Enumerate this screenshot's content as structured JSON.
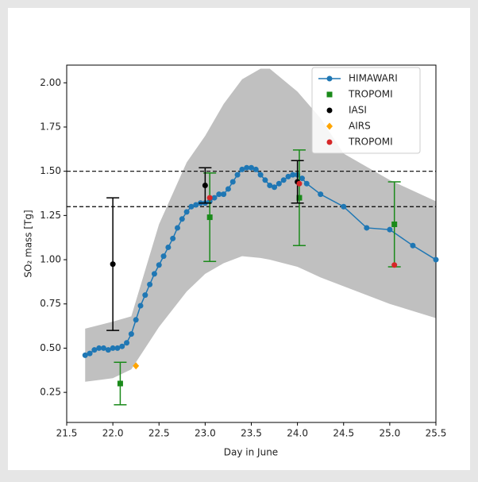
{
  "chart_data": {
    "type": "line",
    "xlabel": "Day in June",
    "ylabel": "SO₂ mass [Tg]",
    "xlim": [
      21.5,
      25.5
    ],
    "ylim": [
      0.08,
      2.1
    ],
    "xticks": [
      21.5,
      {
        "value": 22,
        "label": "22.0"
      },
      22.5,
      {
        "value": 23,
        "label": "23.0"
      },
      23.5,
      {
        "value": 24,
        "label": "24.0"
      },
      24.5,
      {
        "value": 25,
        "label": "25.0"
      },
      25.5
    ],
    "yticks": [
      {
        "value": 0.25,
        "label": "0.25"
      },
      {
        "value": 0.5,
        "label": "0.50"
      },
      {
        "value": 0.75,
        "label": "0.75"
      },
      {
        "value": 1,
        "label": "1.00"
      },
      {
        "value": 1.25,
        "label": "1.25"
      },
      {
        "value": 1.5,
        "label": "1.50"
      },
      {
        "value": 1.75,
        "label": "1.75"
      },
      {
        "value": 2,
        "label": "2.00"
      }
    ],
    "hlines": [
      1.5,
      1.3
    ],
    "legend": "upper right",
    "band": {
      "color": "#c0c0c0",
      "x": [
        21.7,
        22.0,
        22.2,
        22.5,
        22.8,
        23.0,
        23.2,
        23.4,
        23.6,
        23.7,
        24.0,
        24.25,
        24.5,
        25.0,
        25.5
      ],
      "upper": [
        0.61,
        0.65,
        0.68,
        1.2,
        1.55,
        1.7,
        1.88,
        2.02,
        2.08,
        2.08,
        1.95,
        1.8,
        1.6,
        1.45,
        1.33
      ],
      "lower": [
        0.31,
        0.33,
        0.38,
        0.62,
        0.82,
        0.92,
        0.98,
        1.02,
        1.01,
        1.0,
        0.96,
        0.9,
        0.85,
        0.75,
        0.67
      ]
    },
    "series": [
      {
        "name": "HIMAWARI",
        "color": "#1f77b4",
        "marker": "o",
        "line": true,
        "x": [
          21.7,
          21.75,
          21.8,
          21.85,
          21.9,
          21.95,
          22.0,
          22.05,
          22.1,
          22.15,
          22.2,
          22.25,
          22.3,
          22.35,
          22.4,
          22.45,
          22.5,
          22.55,
          22.6,
          22.65,
          22.7,
          22.75,
          22.8,
          22.85,
          22.9,
          22.95,
          23.0,
          23.05,
          23.1,
          23.15,
          23.2,
          23.25,
          23.3,
          23.35,
          23.4,
          23.45,
          23.5,
          23.55,
          23.6,
          23.65,
          23.7,
          23.75,
          23.8,
          23.85,
          23.9,
          23.95,
          24.0,
          24.05,
          24.1,
          24.25,
          24.5,
          24.75,
          25.0,
          25.25,
          25.5
        ],
        "values": [
          0.46,
          0.47,
          0.49,
          0.5,
          0.5,
          0.49,
          0.5,
          0.5,
          0.51,
          0.53,
          0.58,
          0.66,
          0.74,
          0.8,
          0.86,
          0.92,
          0.97,
          1.02,
          1.07,
          1.12,
          1.18,
          1.23,
          1.27,
          1.3,
          1.31,
          1.32,
          1.32,
          1.33,
          1.35,
          1.37,
          1.37,
          1.4,
          1.44,
          1.48,
          1.51,
          1.52,
          1.52,
          1.51,
          1.48,
          1.45,
          1.42,
          1.41,
          1.43,
          1.45,
          1.47,
          1.48,
          1.48,
          1.46,
          1.43,
          1.37,
          1.3,
          1.18,
          1.17,
          1.08,
          1.0
        ]
      },
      {
        "name": "TROPOMI",
        "color": "#1a8a1a",
        "marker": "s",
        "x": [
          22.08,
          23.05,
          24.02,
          25.05
        ],
        "values": [
          0.3,
          1.24,
          1.35,
          1.2
        ],
        "errors": [
          0.12,
          0.25,
          0.27,
          0.24
        ]
      },
      {
        "name": "IASI",
        "color": "#000000",
        "marker": "o",
        "x": [
          22.0,
          23.0,
          24.0
        ],
        "values": [
          0.975,
          1.42,
          1.44
        ],
        "errors": [
          0.375,
          0.1,
          0.12
        ]
      },
      {
        "name": "AIRS",
        "color": "#ffa500",
        "marker": "D",
        "x": [
          22.25
        ],
        "values": [
          0.4
        ]
      },
      {
        "name": "TROPOMI",
        "color": "#d62728",
        "marker": "o",
        "x": [
          23.05,
          24.02,
          25.05
        ],
        "values": [
          1.35,
          1.43,
          0.97
        ]
      }
    ]
  }
}
